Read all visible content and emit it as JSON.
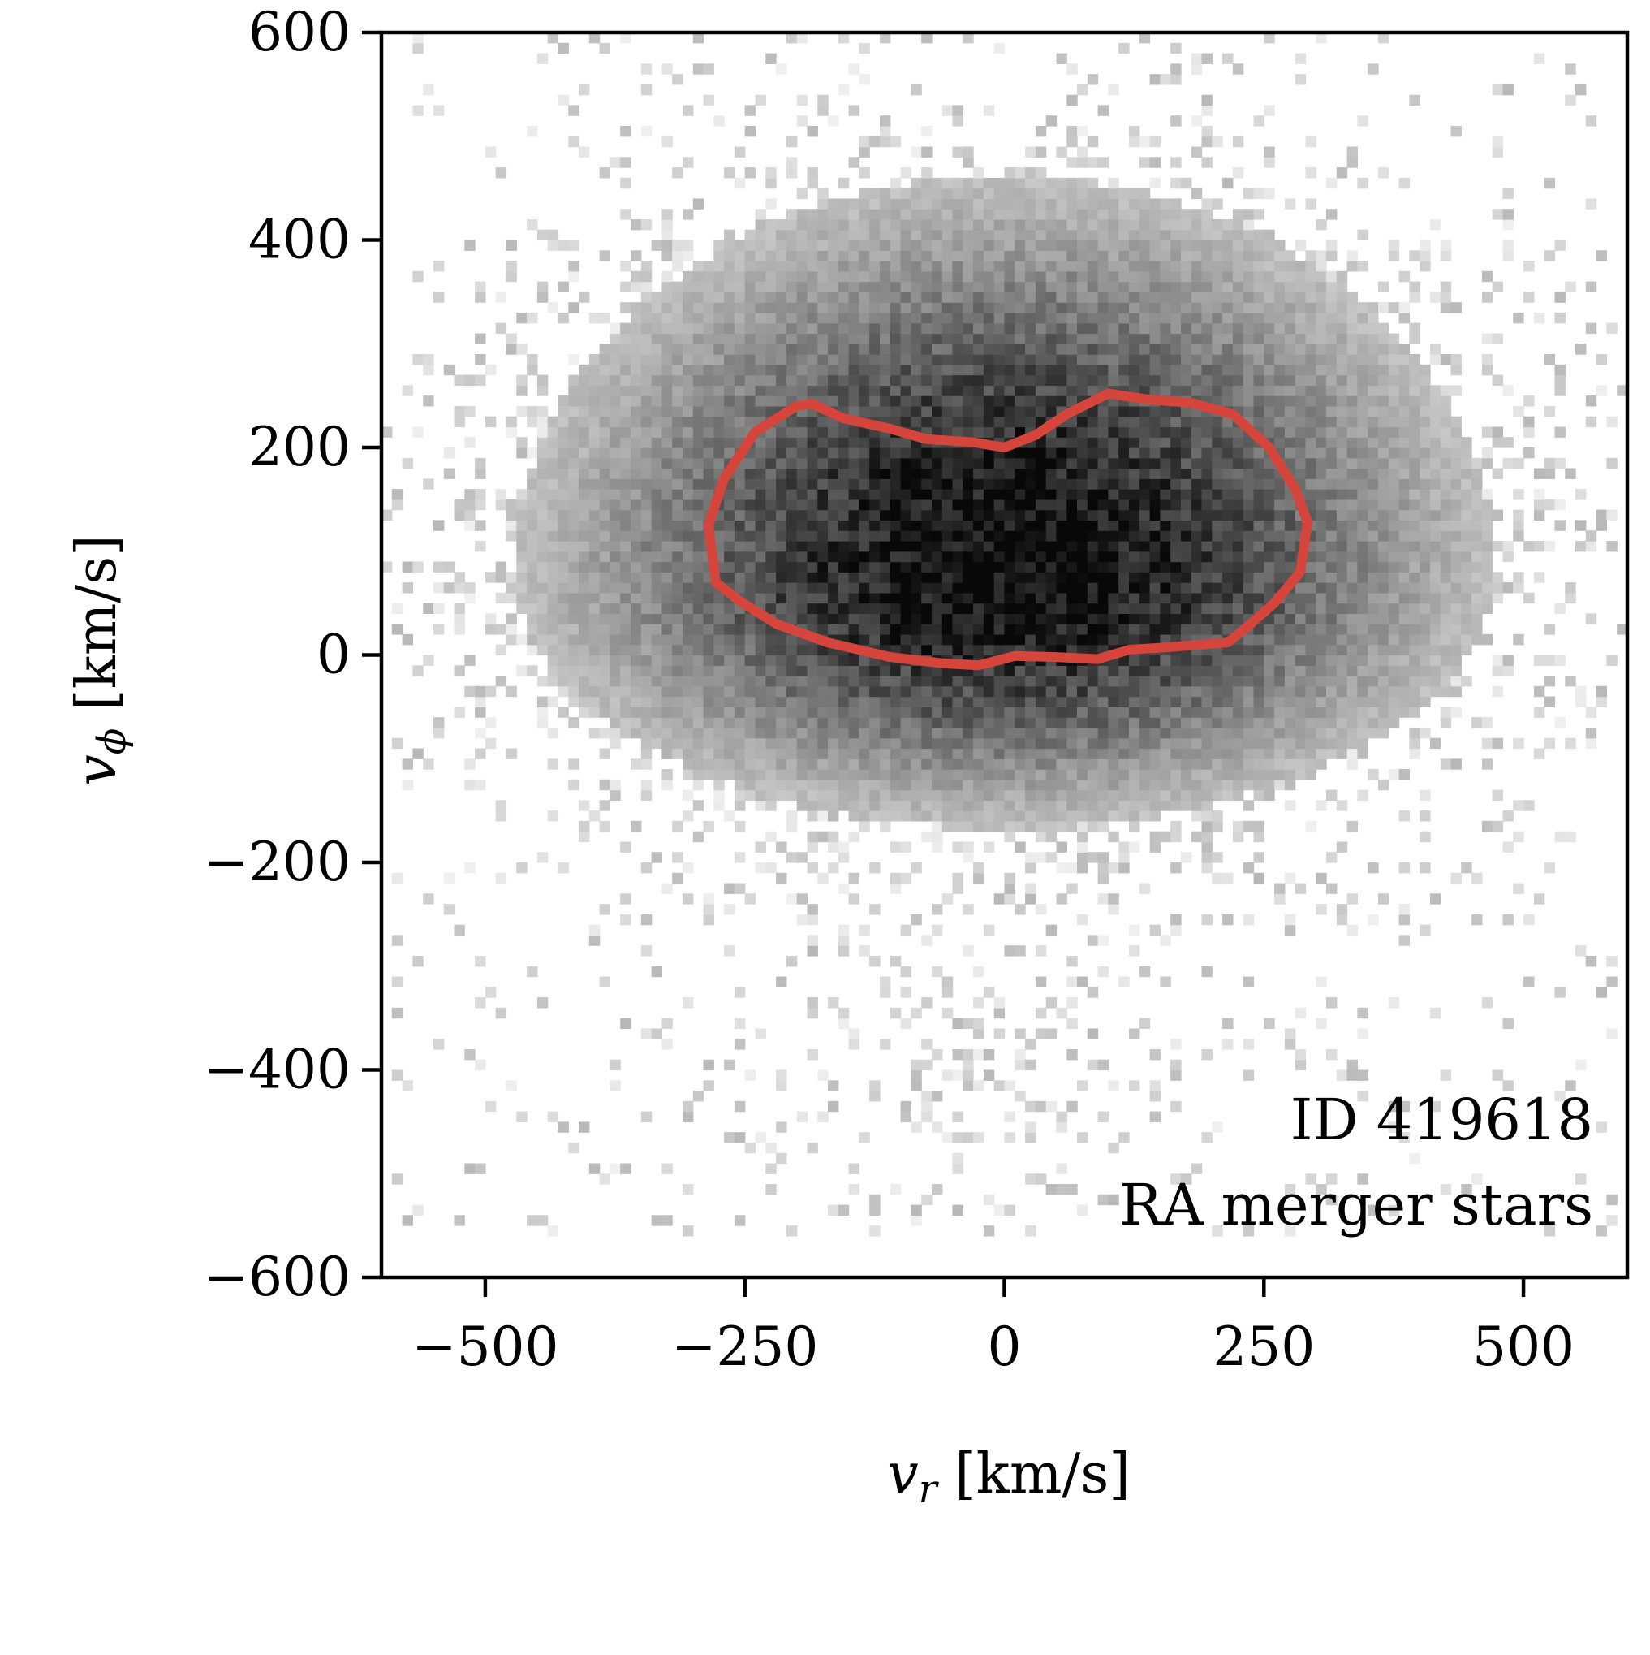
{
  "chart_data": {
    "type": "heatmap",
    "xlabel": {
      "var": "v",
      "sub": "r",
      "unit": " [km/s]"
    },
    "ylabel": {
      "var": "v",
      "sub": "ϕ",
      "unit": " [km/s]"
    },
    "xlim": [
      -600,
      600
    ],
    "ylim": [
      -600,
      600
    ],
    "xticks": [
      -500,
      -250,
      0,
      250,
      500
    ],
    "xtick_labels": [
      "−500",
      "−250",
      "0",
      "250",
      "500"
    ],
    "yticks": [
      600,
      400,
      200,
      0,
      -200,
      -400,
      -600
    ],
    "ytick_labels": [
      "600",
      "400",
      "200",
      "0",
      "−200",
      "−400",
      "−600"
    ],
    "colormap": "Greys",
    "grid": false,
    "density_model": {
      "note_free": true,
      "peak_vr": 0,
      "peak_vphi": 80,
      "sigma_vr": 210,
      "sigma_vphi_upper": 170,
      "sigma_vphi_lower": 110,
      "sparse_halo_vphi_min": -560,
      "sparse_halo_vphi_max": 600
    },
    "contour": {
      "color": "#d6453b",
      "points": [
        [
          -285,
          125
        ],
        [
          -270,
          170
        ],
        [
          -240,
          215
        ],
        [
          -200,
          240
        ],
        [
          -185,
          242
        ],
        [
          -155,
          228
        ],
        [
          -110,
          218
        ],
        [
          -75,
          208
        ],
        [
          -30,
          205
        ],
        [
          0,
          200
        ],
        [
          30,
          212
        ],
        [
          60,
          232
        ],
        [
          100,
          252
        ],
        [
          140,
          246
        ],
        [
          180,
          243
        ],
        [
          220,
          232
        ],
        [
          255,
          200
        ],
        [
          280,
          160
        ],
        [
          292,
          128
        ],
        [
          285,
          80
        ],
        [
          260,
          50
        ],
        [
          235,
          28
        ],
        [
          215,
          12
        ],
        [
          165,
          8
        ],
        [
          120,
          5
        ],
        [
          90,
          -4
        ],
        [
          50,
          -2
        ],
        [
          10,
          -1
        ],
        [
          -25,
          -10
        ],
        [
          -60,
          -8
        ],
        [
          -110,
          -2
        ],
        [
          -170,
          12
        ],
        [
          -220,
          30
        ],
        [
          -255,
          52
        ],
        [
          -278,
          70
        ]
      ]
    },
    "annotations": [
      "ID 419618",
      "RA merger stars"
    ]
  }
}
